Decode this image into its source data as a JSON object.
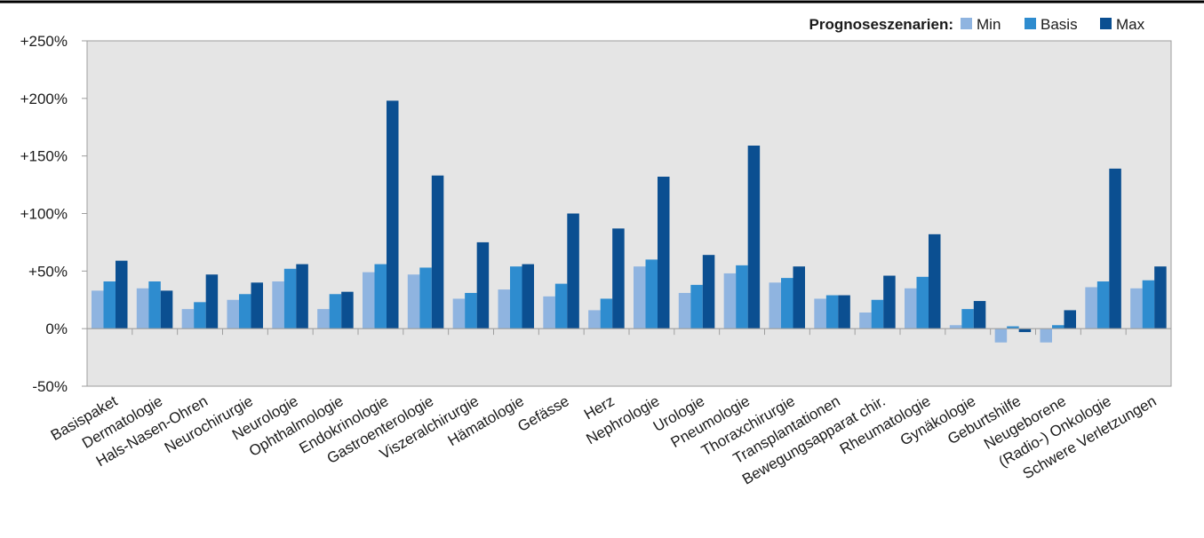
{
  "chart_data": {
    "type": "bar",
    "title": "",
    "xlabel": "",
    "ylabel": "",
    "ylim": [
      -50,
      250
    ],
    "yticks": [
      -50,
      0,
      50,
      100,
      150,
      200,
      250
    ],
    "ytick_labels": [
      "-50%",
      "0%",
      "+50%",
      "+100%",
      "+150%",
      "+200%",
      "+250%"
    ],
    "grid": false,
    "legend": {
      "title": "Prognoseszenarien:",
      "placement": "top-right"
    },
    "categories": [
      "Basispaket",
      "Dermatologie",
      "Hals-Nasen-Ohren",
      "Neurochirurgie",
      "Neurologie",
      "Ophthalmologie",
      "Endokrinologie",
      "Gastroenterologie",
      "Viszeralchirurgie",
      "Hämatologie",
      "Gefässe",
      "Herz",
      "Nephrologie",
      "Urologie",
      "Pneumologie",
      "Thoraxchirurgie",
      "Transplantationen",
      "Bewegungsapparat chir.",
      "Rheumatologie",
      "Gynäkologie",
      "Geburtshilfe",
      "Neugeborene",
      "(Radio-) Onkologie",
      "Schwere Verletzungen"
    ],
    "series": [
      {
        "name": "Min",
        "color": "#8fb4e0",
        "values": [
          33,
          35,
          17,
          25,
          41,
          17,
          49,
          47,
          26,
          34,
          28,
          16,
          54,
          31,
          48,
          40,
          26,
          14,
          35,
          3,
          -12,
          -12,
          36,
          35
        ]
      },
      {
        "name": "Basis",
        "color": "#2e8ccf",
        "values": [
          41,
          41,
          23,
          30,
          52,
          30,
          56,
          53,
          31,
          54,
          39,
          26,
          60,
          38,
          55,
          44,
          29,
          25,
          45,
          17,
          2,
          3,
          41,
          42
        ]
      },
      {
        "name": "Max",
        "color": "#0b4f91",
        "values": [
          59,
          33,
          47,
          40,
          56,
          32,
          198,
          133,
          75,
          56,
          100,
          87,
          132,
          64,
          159,
          54,
          29,
          46,
          82,
          24,
          -3,
          16,
          139,
          54
        ]
      }
    ],
    "plot_background": "#e5e5e5",
    "axis_color": "#9e9e9e"
  }
}
